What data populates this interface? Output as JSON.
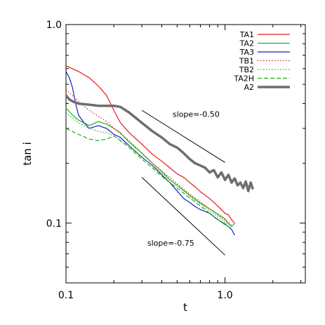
{
  "chart_data": {
    "type": "line",
    "title": "",
    "xlabel": "t",
    "ylabel": "tan i",
    "xscale": "log",
    "yscale": "log",
    "xlim": [
      0.1,
      3.2
    ],
    "ylim": [
      0.05,
      1.0
    ],
    "grid": false,
    "legend_position": "top-right",
    "x_tick_labels": [
      {
        "value": 0.1,
        "label": "0.1"
      },
      {
        "value": 1.0,
        "label": "1.0"
      }
    ],
    "y_tick_labels": [
      {
        "value": 0.1,
        "label": "0.1"
      },
      {
        "value": 1.0,
        "label": "1.0"
      }
    ],
    "series": [
      {
        "name": "TA1",
        "color": "#e41a1c",
        "style": "solid",
        "x": [
          0.1,
          0.12,
          0.14,
          0.16,
          0.18,
          0.2,
          0.22,
          0.25,
          0.3,
          0.35,
          0.4,
          0.45,
          0.5,
          0.55,
          0.6,
          0.65,
          0.7,
          0.8,
          0.9,
          1.0,
          1.05,
          1.1,
          1.15
        ],
        "y": [
          0.62,
          0.58,
          0.54,
          0.49,
          0.44,
          0.37,
          0.32,
          0.285,
          0.25,
          0.222,
          0.205,
          0.19,
          0.177,
          0.17,
          0.16,
          0.152,
          0.144,
          0.133,
          0.122,
          0.112,
          0.11,
          0.104,
          0.1
        ]
      },
      {
        "name": "TA2",
        "color": "#1db11d",
        "style": "solid",
        "x": [
          0.1,
          0.11,
          0.12,
          0.14,
          0.16,
          0.18,
          0.2,
          0.22,
          0.25,
          0.3,
          0.35,
          0.4,
          0.45,
          0.5,
          0.55,
          0.6,
          0.7,
          0.8,
          0.9,
          1.0,
          1.05,
          1.1,
          1.15
        ],
        "y": [
          0.38,
          0.35,
          0.33,
          0.31,
          0.325,
          0.315,
          0.3,
          0.285,
          0.255,
          0.225,
          0.2,
          0.182,
          0.165,
          0.155,
          0.146,
          0.138,
          0.126,
          0.118,
          0.111,
          0.105,
          0.1,
          0.096,
          0.1
        ]
      },
      {
        "name": "TA3",
        "color": "#1c1cc8",
        "style": "solid",
        "x": [
          0.1,
          0.105,
          0.11,
          0.115,
          0.12,
          0.13,
          0.14,
          0.16,
          0.18,
          0.2,
          0.22,
          0.25,
          0.3,
          0.35,
          0.4,
          0.45,
          0.5,
          0.55,
          0.6,
          0.65,
          0.7,
          0.8,
          0.9,
          1.0,
          1.1,
          1.15
        ],
        "y": [
          0.58,
          0.54,
          0.48,
          0.4,
          0.35,
          0.32,
          0.3,
          0.31,
          0.3,
          0.28,
          0.27,
          0.245,
          0.215,
          0.195,
          0.175,
          0.16,
          0.145,
          0.133,
          0.127,
          0.121,
          0.117,
          0.112,
          0.104,
          0.099,
          0.093,
          0.087
        ]
      },
      {
        "name": "TB1",
        "color": "#e41a1c",
        "style": "dotted",
        "x": [
          0.1,
          0.12,
          0.14,
          0.16,
          0.18,
          0.2,
          0.25,
          0.3,
          0.35,
          0.4,
          0.5,
          0.6,
          0.7,
          0.8,
          1.0,
          1.1
        ],
        "y": [
          0.47,
          0.41,
          0.37,
          0.345,
          0.325,
          0.3,
          0.26,
          0.225,
          0.2,
          0.183,
          0.158,
          0.14,
          0.128,
          0.118,
          0.103,
          0.098
        ]
      },
      {
        "name": "TB2",
        "color": "#1db11d",
        "style": "dotted",
        "x": [
          0.1,
          0.12,
          0.14,
          0.16,
          0.18,
          0.2,
          0.25,
          0.3,
          0.35,
          0.4,
          0.5,
          0.6,
          0.7,
          0.8,
          1.0,
          1.1
        ],
        "y": [
          0.36,
          0.32,
          0.3,
          0.29,
          0.285,
          0.275,
          0.245,
          0.215,
          0.195,
          0.178,
          0.155,
          0.137,
          0.125,
          0.115,
          0.101,
          0.096
        ]
      },
      {
        "name": "TA2H",
        "color": "#1db11d",
        "style": "dashed",
        "x": [
          0.1,
          0.12,
          0.14,
          0.16,
          0.18,
          0.2,
          0.22,
          0.25,
          0.3,
          0.35,
          0.4,
          0.5,
          0.6,
          0.7,
          0.8,
          1.0,
          1.1
        ],
        "y": [
          0.3,
          0.28,
          0.265,
          0.26,
          0.265,
          0.275,
          0.26,
          0.24,
          0.21,
          0.19,
          0.172,
          0.15,
          0.134,
          0.122,
          0.112,
          0.098,
          0.094
        ]
      },
      {
        "name": "A2",
        "color": "#6e6e6e",
        "style": "thick",
        "x": [
          0.1,
          0.105,
          0.11,
          0.12,
          0.14,
          0.16,
          0.18,
          0.2,
          0.22,
          0.25,
          0.3,
          0.35,
          0.4,
          0.45,
          0.5,
          0.55,
          0.6,
          0.65,
          0.7,
          0.75,
          0.8,
          0.85,
          0.9,
          0.95,
          1.0,
          1.05,
          1.1,
          1.15,
          1.2,
          1.25,
          1.3,
          1.35,
          1.4,
          1.45,
          1.5
        ],
        "y": [
          0.44,
          0.42,
          0.41,
          0.4,
          0.395,
          0.39,
          0.39,
          0.39,
          0.385,
          0.36,
          0.32,
          0.29,
          0.27,
          0.25,
          0.24,
          0.225,
          0.21,
          0.2,
          0.195,
          0.19,
          0.18,
          0.185,
          0.17,
          0.18,
          0.165,
          0.175,
          0.16,
          0.168,
          0.155,
          0.16,
          0.15,
          0.162,
          0.145,
          0.16,
          0.148
        ]
      }
    ],
    "reference_lines": [
      {
        "label": "slope=-0.50",
        "slope": -0.5,
        "x": [
          0.3,
          1.0
        ],
        "y": [
          0.37,
          0.202
        ]
      },
      {
        "label": "slope=-0.75",
        "slope": -0.75,
        "x": [
          0.3,
          1.0
        ],
        "y": [
          0.17,
          0.069
        ]
      }
    ]
  }
}
